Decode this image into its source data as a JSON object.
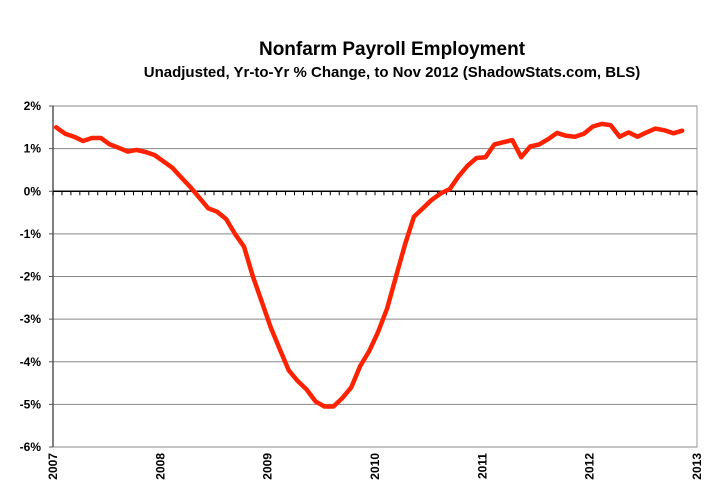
{
  "chart_data": {
    "type": "line",
    "title": "Nonfarm Payroll Employment",
    "subtitle": "Unadjusted, Yr-to-Yr % Change, to Nov 2012 (ShadowStats.com, BLS)",
    "xlabel": "",
    "ylabel": "",
    "x_ticks": [
      "2007",
      "2008",
      "2009",
      "2010",
      "2011",
      "2012",
      "2013"
    ],
    "y_ticks": [
      "2%",
      "1%",
      "0%",
      "-1%",
      "-2%",
      "-3%",
      "-4%",
      "-5%",
      "-6%"
    ],
    "ylim": [
      -6,
      2
    ],
    "xlim": [
      "2007-01",
      "2013-01"
    ],
    "grid": true,
    "line_color": "#ff2200",
    "series": [
      {
        "start": "2007-01",
        "frequency": "monthly",
        "values": [
          1.5,
          1.35,
          1.28,
          1.18,
          1.25,
          1.25,
          1.1,
          1.02,
          0.93,
          0.97,
          0.92,
          0.85,
          0.7,
          0.55,
          0.32,
          0.1,
          -0.15,
          -0.4,
          -0.48,
          -0.65,
          -1.0,
          -1.3,
          -2.0,
          -2.6,
          -3.2,
          -3.7,
          -4.2,
          -4.45,
          -4.65,
          -4.93,
          -5.05,
          -5.05,
          -4.85,
          -4.6,
          -4.1,
          -3.75,
          -3.3,
          -2.75,
          -2.0,
          -1.25,
          -0.6,
          -0.4,
          -0.2,
          -0.05,
          0.05,
          0.35,
          0.6,
          0.78,
          0.8,
          1.1,
          1.15,
          1.2,
          0.8,
          1.05,
          1.1,
          1.22,
          1.37,
          1.3,
          1.28,
          1.35,
          1.52,
          1.58,
          1.55,
          1.28,
          1.38,
          1.28,
          1.38,
          1.47,
          1.43,
          1.36,
          1.42
        ]
      }
    ]
  }
}
